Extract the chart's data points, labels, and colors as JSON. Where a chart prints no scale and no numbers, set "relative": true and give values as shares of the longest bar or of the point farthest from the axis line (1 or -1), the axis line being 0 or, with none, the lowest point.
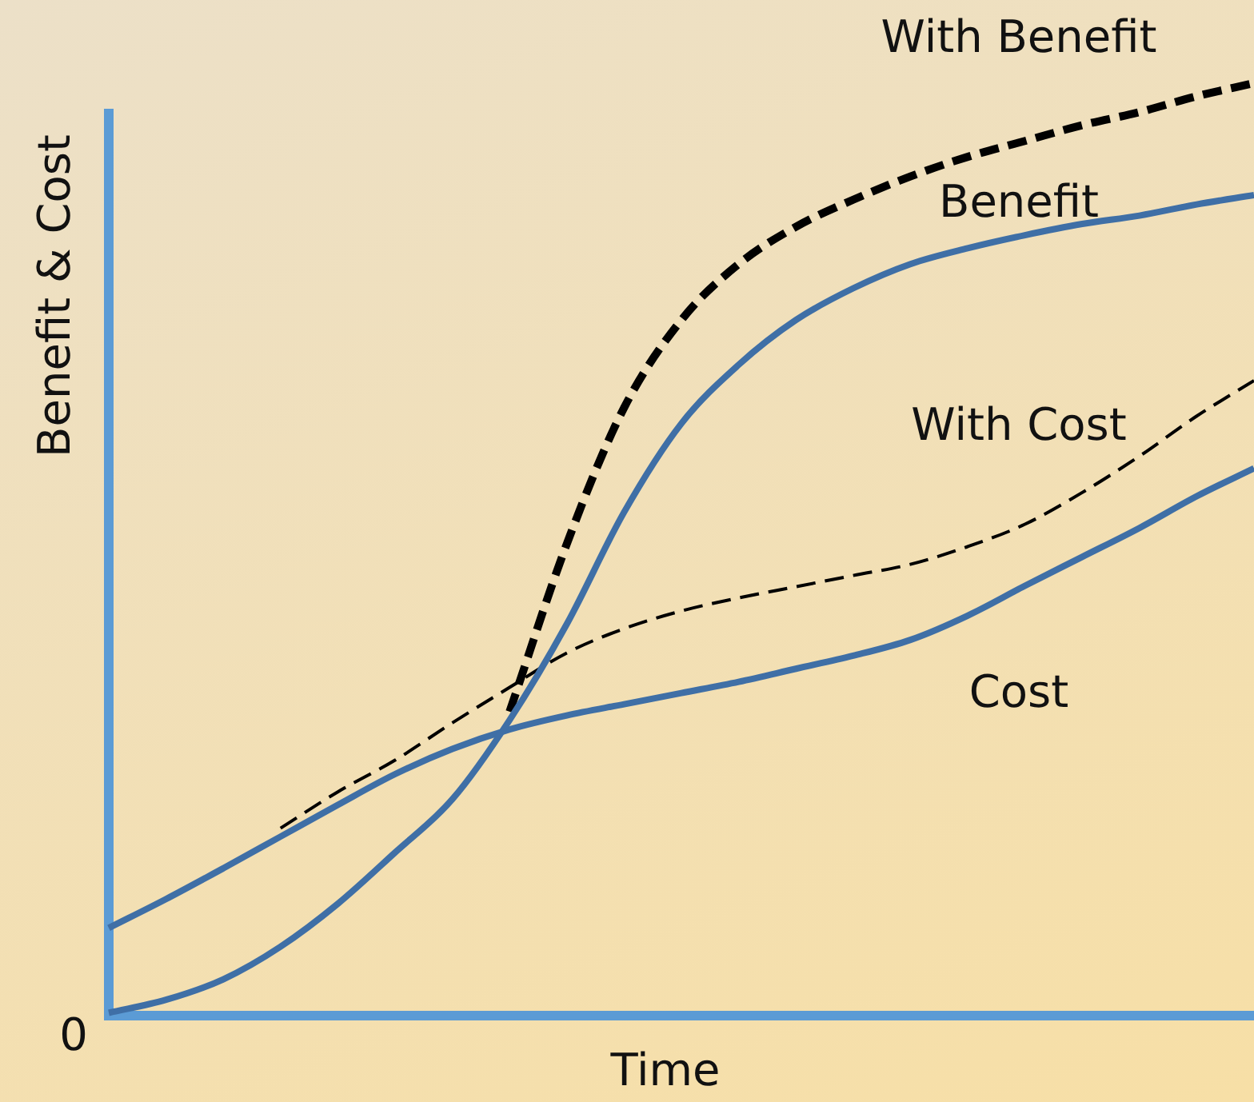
{
  "chart_data": {
    "type": "line",
    "relative": true,
    "xlabel": "Time",
    "ylabel": "Benefit & Cost",
    "annotations": [
      "0"
    ],
    "legend": false,
    "marker": "none",
    "categories": [
      null,
      null,
      null,
      null,
      null,
      null,
      null,
      null,
      null,
      null,
      null,
      null,
      null,
      null,
      null,
      null,
      null,
      null,
      null,
      null,
      null
    ],
    "series": [
      {
        "name": "Benefit",
        "color": "#3f6fa6",
        "line_style": "solid",
        "values": [
          0.003,
          0.017,
          0.039,
          0.074,
          0.12,
          0.175,
          0.232,
          0.317,
          0.42,
          0.54,
          0.635,
          0.698,
          0.746,
          0.78,
          0.806,
          0.823,
          0.837,
          0.849,
          0.858,
          0.87,
          0.88
        ]
      },
      {
        "name": "Cost",
        "color": "#3f6fa6",
        "line_style": "solid",
        "values": [
          0.094,
          0.125,
          0.158,
          0.192,
          0.226,
          0.259,
          0.286,
          0.307,
          0.322,
          0.334,
          0.346,
          0.358,
          0.372,
          0.386,
          0.403,
          0.429,
          0.461,
          0.492,
          0.523,
          0.557,
          0.587
        ]
      },
      {
        "name": "With Benefit",
        "color": "#000000",
        "line_style": "dashed",
        "values": [
          null,
          null,
          null,
          null,
          null,
          null,
          null,
          0.326,
          0.506,
          0.652,
          0.746,
          0.806,
          0.846,
          0.875,
          0.9,
          0.921,
          0.938,
          0.955,
          0.969,
          0.986,
          1
        ]
      },
      {
        "name": "With Cost",
        "color": "#000000",
        "line_style": "dashed",
        "values": [
          null,
          null,
          null,
          0.201,
          0.24,
          0.274,
          0.314,
          0.352,
          0.389,
          0.415,
          0.434,
          0.448,
          0.46,
          0.472,
          0.484,
          0.503,
          0.527,
          0.561,
          0.6,
          0.643,
          0.681
        ]
      }
    ]
  }
}
